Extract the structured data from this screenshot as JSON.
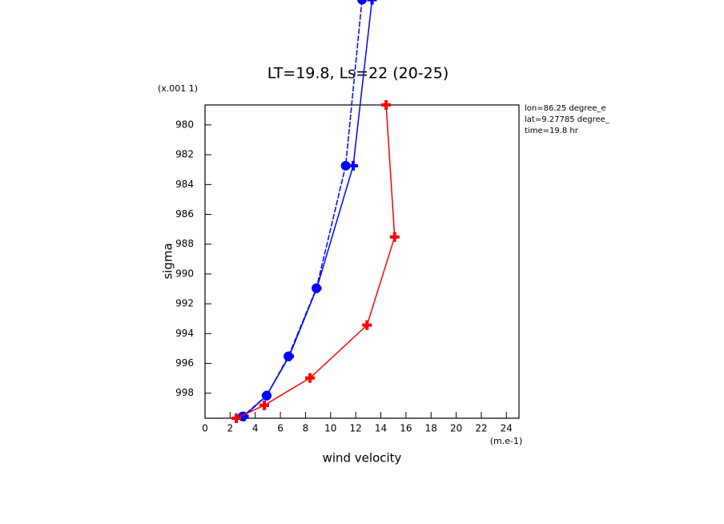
{
  "chart_data": {
    "type": "line",
    "title": "LT=19.8, Ls=22 (20-25)",
    "y_scale_note": "(x.001 1)",
    "y_label": "sigma",
    "x_label": "wind velocity",
    "x_units": "(m.e-1)",
    "annotations": [
      "lon=86.25 degree_e",
      "lat=9.27785 degree_",
      "time=19.8 hr"
    ],
    "xlim": [
      0,
      25
    ],
    "xticks": [
      0,
      2,
      4,
      6,
      8,
      10,
      12,
      14,
      16,
      18,
      20,
      22,
      24
    ],
    "ylim": [
      978.66,
      999.68
    ],
    "yticks": [
      980,
      982,
      984,
      986,
      988,
      990,
      992,
      994,
      996,
      998
    ],
    "y_inverted": true,
    "series": [
      {
        "color": "#0000ff",
        "marker": "circle",
        "dashed": true,
        "x": [
          12.5,
          11.2,
          8.87,
          6.64,
          4.91,
          3.0
        ],
        "values": [
          971.6,
          982.74,
          990.96,
          995.53,
          998.16,
          999.56
        ]
      },
      {
        "color": "#0000ff",
        "marker": "plus",
        "dashed": false,
        "x": [
          13.3,
          11.8,
          8.9,
          6.7,
          4.9,
          3.1
        ],
        "values": [
          971.6,
          982.74,
          990.96,
          995.53,
          998.16,
          999.56
        ]
      },
      {
        "color": "#ff0000",
        "marker": "plus",
        "dashed": false,
        "x": [
          14.42,
          15.1,
          12.9,
          8.36,
          4.72,
          2.49
        ],
        "values": [
          978.66,
          987.52,
          993.43,
          996.98,
          998.81,
          999.68
        ]
      }
    ]
  }
}
